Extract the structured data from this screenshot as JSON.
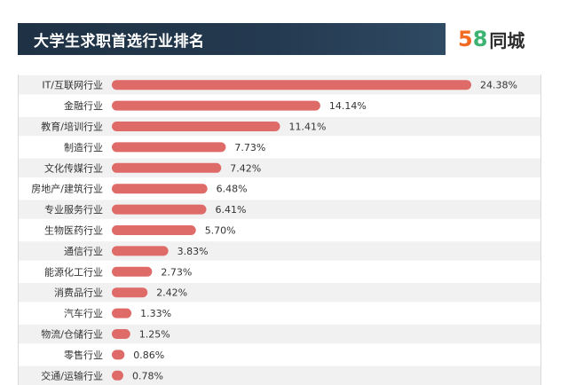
{
  "header": {
    "title": "大学生求职首选行业排名",
    "title_bg_color": "#1f3144",
    "logo": {
      "num_5": "5",
      "num_8": "8",
      "text": "同城",
      "color_5": "#f26b21",
      "color_8": "#3cb371"
    }
  },
  "chart_data": {
    "type": "bar",
    "orientation": "horizontal",
    "title": "大学生求职首选行业排名",
    "categories": [
      "IT/互联网行业",
      "金融行业",
      "教育/培训行业",
      "制造行业",
      "文化传媒行业",
      "房地产/建筑行业",
      "专业服务行业",
      "生物医药行业",
      "通信行业",
      "能源化工行业",
      "消费品行业",
      "汽车行业",
      "物流/仓储行业",
      "零售行业",
      "交通/运输行业"
    ],
    "values": [
      24.38,
      14.14,
      11.41,
      7.73,
      7.42,
      6.48,
      6.41,
      5.7,
      3.83,
      2.73,
      2.42,
      1.33,
      1.25,
      0.86,
      0.78
    ],
    "value_labels": [
      "24.38%",
      "14.14%",
      "11.41%",
      "7.73%",
      "7.42%",
      "6.48%",
      "6.41%",
      "5.70%",
      "3.83%",
      "2.73%",
      "2.42%",
      "1.33%",
      "1.25%",
      "0.86%",
      "0.78%"
    ],
    "bar_color": "#df6b68",
    "row_stripe_color": "#f1f1f1",
    "legend": "none",
    "grid": false
  }
}
